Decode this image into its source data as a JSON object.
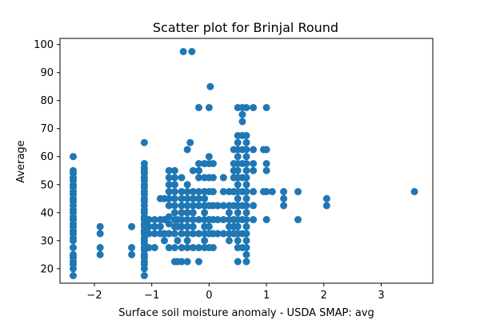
{
  "chart_data": {
    "type": "scatter",
    "title": "Scatter plot for Brinjal Round",
    "xlabel": "Surface soil moisture anomaly  - USDA SMAP: avg",
    "ylabel": "Average",
    "xlim": [
      -2.6,
      3.9
    ],
    "ylim": [
      14.8,
      102.2
    ],
    "xticks": [
      -2,
      -1,
      0,
      1,
      2,
      3
    ],
    "xtick_labels": [
      "−2",
      "−1",
      "0",
      "1",
      "2",
      "3"
    ],
    "yticks": [
      20,
      30,
      40,
      50,
      60,
      70,
      80,
      90,
      100
    ],
    "ytick_labels": [
      "20",
      "30",
      "40",
      "50",
      "60",
      "70",
      "80",
      "90",
      "100"
    ],
    "grid": false,
    "legend": "none",
    "marker_color": "#1f77b4",
    "series": [
      {
        "points": [
          [
            -2.37,
            17.5
          ],
          [
            -2.37,
            20
          ],
          [
            -2.37,
            21.5
          ],
          [
            -2.37,
            22.5
          ],
          [
            -2.37,
            24
          ],
          [
            -2.37,
            25
          ],
          [
            -2.37,
            27.5
          ],
          [
            -2.37,
            30
          ],
          [
            -2.37,
            31
          ],
          [
            -2.37,
            32.5
          ],
          [
            -2.37,
            33.5
          ],
          [
            -2.37,
            35
          ],
          [
            -2.37,
            36
          ],
          [
            -2.37,
            37.5
          ],
          [
            -2.37,
            38.5
          ],
          [
            -2.37,
            40
          ],
          [
            -2.37,
            41
          ],
          [
            -2.37,
            42.5
          ],
          [
            -2.37,
            44
          ],
          [
            -2.37,
            45
          ],
          [
            -2.37,
            46.5
          ],
          [
            -2.37,
            47.5
          ],
          [
            -2.37,
            49
          ],
          [
            -2.37,
            50
          ],
          [
            -2.37,
            51.5
          ],
          [
            -2.37,
            52.5
          ],
          [
            -2.37,
            54
          ],
          [
            -2.37,
            55
          ],
          [
            -2.37,
            60
          ],
          [
            -1.9,
            25
          ],
          [
            -1.9,
            27.5
          ],
          [
            -1.9,
            32.5
          ],
          [
            -1.9,
            35
          ],
          [
            -1.35,
            25
          ],
          [
            -1.35,
            27.5
          ],
          [
            -1.35,
            35
          ],
          [
            -1.13,
            17.5
          ],
          [
            -1.13,
            20
          ],
          [
            -1.13,
            21.5
          ],
          [
            -1.13,
            22.5
          ],
          [
            -1.13,
            24
          ],
          [
            -1.13,
            25
          ],
          [
            -1.13,
            26.5
          ],
          [
            -1.13,
            27.5
          ],
          [
            -1.13,
            29
          ],
          [
            -1.13,
            30
          ],
          [
            -1.13,
            31
          ],
          [
            -1.13,
            32.5
          ],
          [
            -1.13,
            33.5
          ],
          [
            -1.13,
            35
          ],
          [
            -1.13,
            36
          ],
          [
            -1.13,
            37.5
          ],
          [
            -1.13,
            38.5
          ],
          [
            -1.13,
            40
          ],
          [
            -1.13,
            41
          ],
          [
            -1.13,
            42.5
          ],
          [
            -1.13,
            44
          ],
          [
            -1.13,
            45
          ],
          [
            -1.13,
            46.5
          ],
          [
            -1.13,
            47.5
          ],
          [
            -1.13,
            49
          ],
          [
            -1.13,
            50
          ],
          [
            -1.13,
            51.5
          ],
          [
            -1.13,
            52.5
          ],
          [
            -1.13,
            54
          ],
          [
            -1.13,
            55
          ],
          [
            -1.13,
            56
          ],
          [
            -1.13,
            57.5
          ],
          [
            -1.13,
            65
          ],
          [
            -1.05,
            27.5
          ],
          [
            -1.05,
            32.5
          ],
          [
            -1.05,
            35
          ],
          [
            -1.05,
            37.5
          ],
          [
            -0.95,
            27.5
          ],
          [
            -0.95,
            32.5
          ],
          [
            -0.95,
            35
          ],
          [
            -0.95,
            37.5
          ],
          [
            -0.85,
            32.5
          ],
          [
            -0.85,
            35
          ],
          [
            -0.85,
            37.5
          ],
          [
            -0.85,
            45
          ],
          [
            -0.78,
            30
          ],
          [
            -0.78,
            32.5
          ],
          [
            -0.78,
            37.5
          ],
          [
            -0.78,
            45
          ],
          [
            -0.7,
            27.5
          ],
          [
            -0.7,
            32.5
          ],
          [
            -0.7,
            36
          ],
          [
            -0.7,
            38.5
          ],
          [
            -0.7,
            42.5
          ],
          [
            -0.7,
            45
          ],
          [
            -0.7,
            47.5
          ],
          [
            -0.7,
            50
          ],
          [
            -0.7,
            52.5
          ],
          [
            -0.7,
            55
          ],
          [
            -0.6,
            22.5
          ],
          [
            -0.6,
            27.5
          ],
          [
            -0.6,
            32.5
          ],
          [
            -0.6,
            35
          ],
          [
            -0.6,
            37.5
          ],
          [
            -0.6,
            40
          ],
          [
            -0.6,
            42.5
          ],
          [
            -0.6,
            45
          ],
          [
            -0.6,
            47.5
          ],
          [
            -0.6,
            50
          ],
          [
            -0.6,
            52.5
          ],
          [
            -0.6,
            55
          ],
          [
            -0.55,
            22.5
          ],
          [
            -0.55,
            30
          ],
          [
            -0.55,
            35
          ],
          [
            -0.55,
            37.5
          ],
          [
            -0.48,
            22.5
          ],
          [
            -0.48,
            27.5
          ],
          [
            -0.48,
            32.5
          ],
          [
            -0.48,
            35
          ],
          [
            -0.48,
            37.5
          ],
          [
            -0.48,
            40
          ],
          [
            -0.48,
            42.5
          ],
          [
            -0.48,
            45
          ],
          [
            -0.48,
            47.5
          ],
          [
            -0.48,
            52.5
          ],
          [
            -0.45,
            97.5
          ],
          [
            -0.3,
            97.5
          ],
          [
            -0.38,
            22.5
          ],
          [
            -0.38,
            27.5
          ],
          [
            -0.38,
            30
          ],
          [
            -0.38,
            32.5
          ],
          [
            -0.38,
            35
          ],
          [
            -0.38,
            37.5
          ],
          [
            -0.38,
            40
          ],
          [
            -0.38,
            42.5
          ],
          [
            -0.38,
            45
          ],
          [
            -0.38,
            47.5
          ],
          [
            -0.38,
            50
          ],
          [
            -0.38,
            62.5
          ],
          [
            -0.28,
            27.5
          ],
          [
            -0.28,
            32.5
          ],
          [
            -0.28,
            35
          ],
          [
            -0.28,
            37.5
          ],
          [
            -0.28,
            40
          ],
          [
            -0.28,
            42.5
          ],
          [
            -0.28,
            45
          ],
          [
            -0.28,
            47.5
          ],
          [
            -0.28,
            55
          ],
          [
            -0.33,
            65
          ],
          [
            -0.18,
            22.5
          ],
          [
            -0.18,
            27.5
          ],
          [
            -0.18,
            32.5
          ],
          [
            -0.18,
            37.5
          ],
          [
            -0.18,
            42.5
          ],
          [
            -0.18,
            45
          ],
          [
            -0.18,
            47.5
          ],
          [
            -0.18,
            52.5
          ],
          [
            -0.18,
            55
          ],
          [
            -0.18,
            57.5
          ],
          [
            -0.18,
            77.5
          ],
          [
            -0.08,
            27.5
          ],
          [
            -0.08,
            30
          ],
          [
            -0.08,
            32.5
          ],
          [
            -0.08,
            35
          ],
          [
            -0.08,
            37.5
          ],
          [
            -0.08,
            40
          ],
          [
            -0.08,
            42.5
          ],
          [
            -0.08,
            45
          ],
          [
            -0.08,
            47.5
          ],
          [
            -0.08,
            52.5
          ],
          [
            -0.08,
            57.5
          ],
          [
            0.0,
            27.5
          ],
          [
            0.0,
            32.5
          ],
          [
            0.0,
            35
          ],
          [
            0.0,
            37.5
          ],
          [
            0.0,
            42.5
          ],
          [
            0.0,
            47.5
          ],
          [
            0.0,
            52.5
          ],
          [
            0.0,
            57.5
          ],
          [
            0.0,
            60
          ],
          [
            0.0,
            77.5
          ],
          [
            0.02,
            85
          ],
          [
            0.07,
            27.5
          ],
          [
            0.07,
            32.5
          ],
          [
            0.07,
            37.5
          ],
          [
            0.07,
            42.5
          ],
          [
            0.07,
            47.5
          ],
          [
            0.07,
            52.5
          ],
          [
            0.07,
            57.5
          ],
          [
            0.15,
            32.5
          ],
          [
            0.15,
            37.5
          ],
          [
            0.15,
            42.5
          ],
          [
            0.25,
            32.5
          ],
          [
            0.25,
            37.5
          ],
          [
            0.25,
            42.5
          ],
          [
            0.25,
            47.5
          ],
          [
            0.25,
            52.5
          ],
          [
            0.35,
            30
          ],
          [
            0.35,
            32.5
          ],
          [
            0.35,
            35
          ],
          [
            0.35,
            37.5
          ],
          [
            0.35,
            40
          ],
          [
            0.35,
            42.5
          ],
          [
            0.35,
            47.5
          ],
          [
            0.43,
            32.5
          ],
          [
            0.43,
            35
          ],
          [
            0.43,
            37.5
          ],
          [
            0.43,
            42.5
          ],
          [
            0.43,
            47.5
          ],
          [
            0.43,
            52.5
          ],
          [
            0.43,
            55
          ],
          [
            0.43,
            57.5
          ],
          [
            0.43,
            62.5
          ],
          [
            0.5,
            22.5
          ],
          [
            0.5,
            27.5
          ],
          [
            0.5,
            30
          ],
          [
            0.5,
            32.5
          ],
          [
            0.5,
            35
          ],
          [
            0.5,
            37.5
          ],
          [
            0.5,
            40
          ],
          [
            0.5,
            42.5
          ],
          [
            0.5,
            45
          ],
          [
            0.5,
            47.5
          ],
          [
            0.5,
            50
          ],
          [
            0.5,
            52.5
          ],
          [
            0.5,
            55
          ],
          [
            0.5,
            57.5
          ],
          [
            0.5,
            60
          ],
          [
            0.5,
            62.5
          ],
          [
            0.5,
            65
          ],
          [
            0.5,
            67.5
          ],
          [
            0.5,
            77.5
          ],
          [
            0.58,
            27.5
          ],
          [
            0.58,
            32.5
          ],
          [
            0.58,
            37.5
          ],
          [
            0.58,
            42.5
          ],
          [
            0.58,
            47.5
          ],
          [
            0.58,
            52.5
          ],
          [
            0.58,
            57.5
          ],
          [
            0.58,
            62.5
          ],
          [
            0.58,
            67.5
          ],
          [
            0.58,
            72.5
          ],
          [
            0.58,
            75
          ],
          [
            0.58,
            77.5
          ],
          [
            0.65,
            22.5
          ],
          [
            0.65,
            25
          ],
          [
            0.65,
            27.5
          ],
          [
            0.65,
            30
          ],
          [
            0.65,
            32.5
          ],
          [
            0.65,
            35
          ],
          [
            0.65,
            37.5
          ],
          [
            0.65,
            40
          ],
          [
            0.65,
            42.5
          ],
          [
            0.65,
            45
          ],
          [
            0.65,
            47.5
          ],
          [
            0.65,
            50
          ],
          [
            0.65,
            52.5
          ],
          [
            0.65,
            55
          ],
          [
            0.65,
            57.5
          ],
          [
            0.65,
            60
          ],
          [
            0.65,
            62.5
          ],
          [
            0.65,
            65
          ],
          [
            0.65,
            67.5
          ],
          [
            0.65,
            77.5
          ],
          [
            0.77,
            37.5
          ],
          [
            0.77,
            42.5
          ],
          [
            0.77,
            47.5
          ],
          [
            0.77,
            55
          ],
          [
            0.77,
            57.5
          ],
          [
            0.77,
            62.5
          ],
          [
            0.77,
            77.5
          ],
          [
            0.95,
            47.5
          ],
          [
            0.95,
            62.5
          ],
          [
            1.0,
            37.5
          ],
          [
            1.0,
            47.5
          ],
          [
            1.0,
            55
          ],
          [
            1.0,
            57.5
          ],
          [
            1.0,
            62.5
          ],
          [
            1.0,
            77.5
          ],
          [
            1.1,
            47.5
          ],
          [
            1.3,
            42.5
          ],
          [
            1.3,
            45
          ],
          [
            1.3,
            47.5
          ],
          [
            1.55,
            37.5
          ],
          [
            1.55,
            47.5
          ],
          [
            2.05,
            42.5
          ],
          [
            2.05,
            45
          ],
          [
            3.58,
            47.5
          ]
        ]
      }
    ]
  }
}
